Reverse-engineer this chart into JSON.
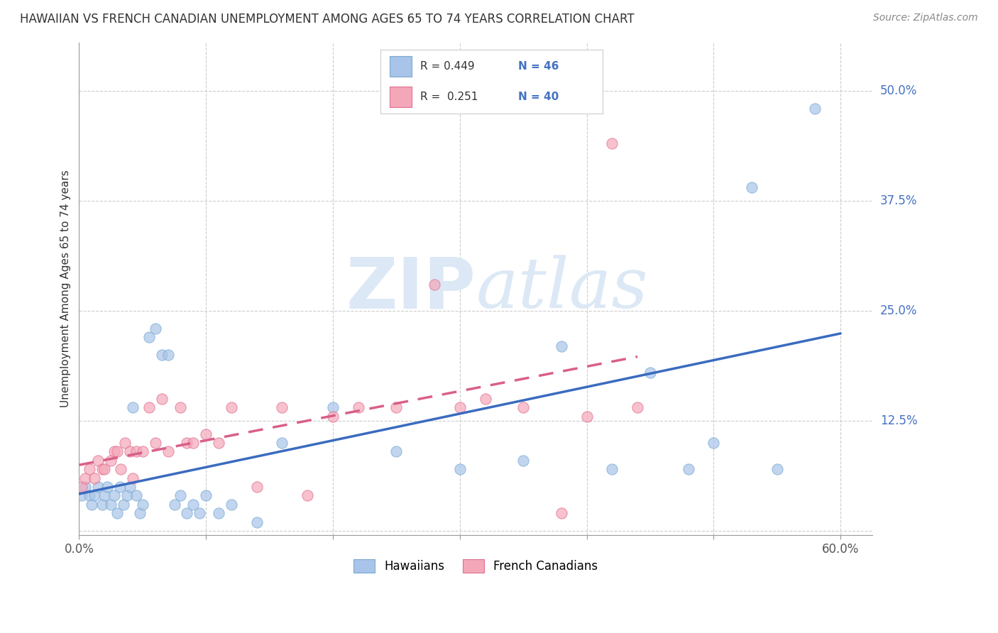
{
  "title": "HAWAIIAN VS FRENCH CANADIAN UNEMPLOYMENT AMONG AGES 65 TO 74 YEARS CORRELATION CHART",
  "source": "Source: ZipAtlas.com",
  "ylabel": "Unemployment Among Ages 65 to 74 years",
  "xlim": [
    0.0,
    0.625
  ],
  "ylim": [
    -0.005,
    0.555
  ],
  "hawaiian_color": "#a8c4e8",
  "hawaiian_edge_color": "#7aaad4",
  "french_color": "#f4a7b9",
  "french_edge_color": "#e07090",
  "hawaiian_line_color": "#3a6bbf",
  "french_line_color": "#d95f8a",
  "R_hawaiian": 0.449,
  "N_hawaiian": 46,
  "R_french": 0.251,
  "N_french": 40,
  "background_color": "#ffffff",
  "grid_color": "#cccccc",
  "ytick_label_color": "#4472c4",
  "watermark_color": "#dce8f5",
  "hawaiians_x": [
    0.002,
    0.005,
    0.008,
    0.01,
    0.012,
    0.015,
    0.018,
    0.02,
    0.022,
    0.025,
    0.028,
    0.03,
    0.032,
    0.035,
    0.038,
    0.04,
    0.042,
    0.045,
    0.048,
    0.05,
    0.055,
    0.06,
    0.065,
    0.07,
    0.075,
    0.08,
    0.085,
    0.09,
    0.095,
    0.1,
    0.11,
    0.12,
    0.14,
    0.16,
    0.2,
    0.25,
    0.3,
    0.35,
    0.38,
    0.42,
    0.45,
    0.48,
    0.5,
    0.53,
    0.55,
    0.58
  ],
  "hawaiians_y": [
    0.04,
    0.05,
    0.04,
    0.03,
    0.04,
    0.05,
    0.03,
    0.04,
    0.05,
    0.03,
    0.04,
    0.02,
    0.05,
    0.03,
    0.04,
    0.05,
    0.14,
    0.04,
    0.02,
    0.03,
    0.22,
    0.23,
    0.2,
    0.2,
    0.03,
    0.04,
    0.02,
    0.03,
    0.02,
    0.04,
    0.02,
    0.03,
    0.01,
    0.1,
    0.14,
    0.09,
    0.07,
    0.08,
    0.21,
    0.07,
    0.18,
    0.07,
    0.1,
    0.39,
    0.07,
    0.48
  ],
  "french_x": [
    0.002,
    0.005,
    0.008,
    0.012,
    0.015,
    0.018,
    0.02,
    0.025,
    0.028,
    0.03,
    0.033,
    0.036,
    0.04,
    0.042,
    0.045,
    0.05,
    0.055,
    0.06,
    0.065,
    0.07,
    0.08,
    0.085,
    0.09,
    0.1,
    0.11,
    0.12,
    0.14,
    0.16,
    0.18,
    0.2,
    0.22,
    0.25,
    0.28,
    0.3,
    0.32,
    0.35,
    0.38,
    0.4,
    0.42,
    0.44
  ],
  "french_y": [
    0.05,
    0.06,
    0.07,
    0.06,
    0.08,
    0.07,
    0.07,
    0.08,
    0.09,
    0.09,
    0.07,
    0.1,
    0.09,
    0.06,
    0.09,
    0.09,
    0.14,
    0.1,
    0.15,
    0.09,
    0.14,
    0.1,
    0.1,
    0.11,
    0.1,
    0.14,
    0.05,
    0.14,
    0.04,
    0.13,
    0.14,
    0.14,
    0.28,
    0.14,
    0.15,
    0.14,
    0.02,
    0.13,
    0.44,
    0.14
  ]
}
